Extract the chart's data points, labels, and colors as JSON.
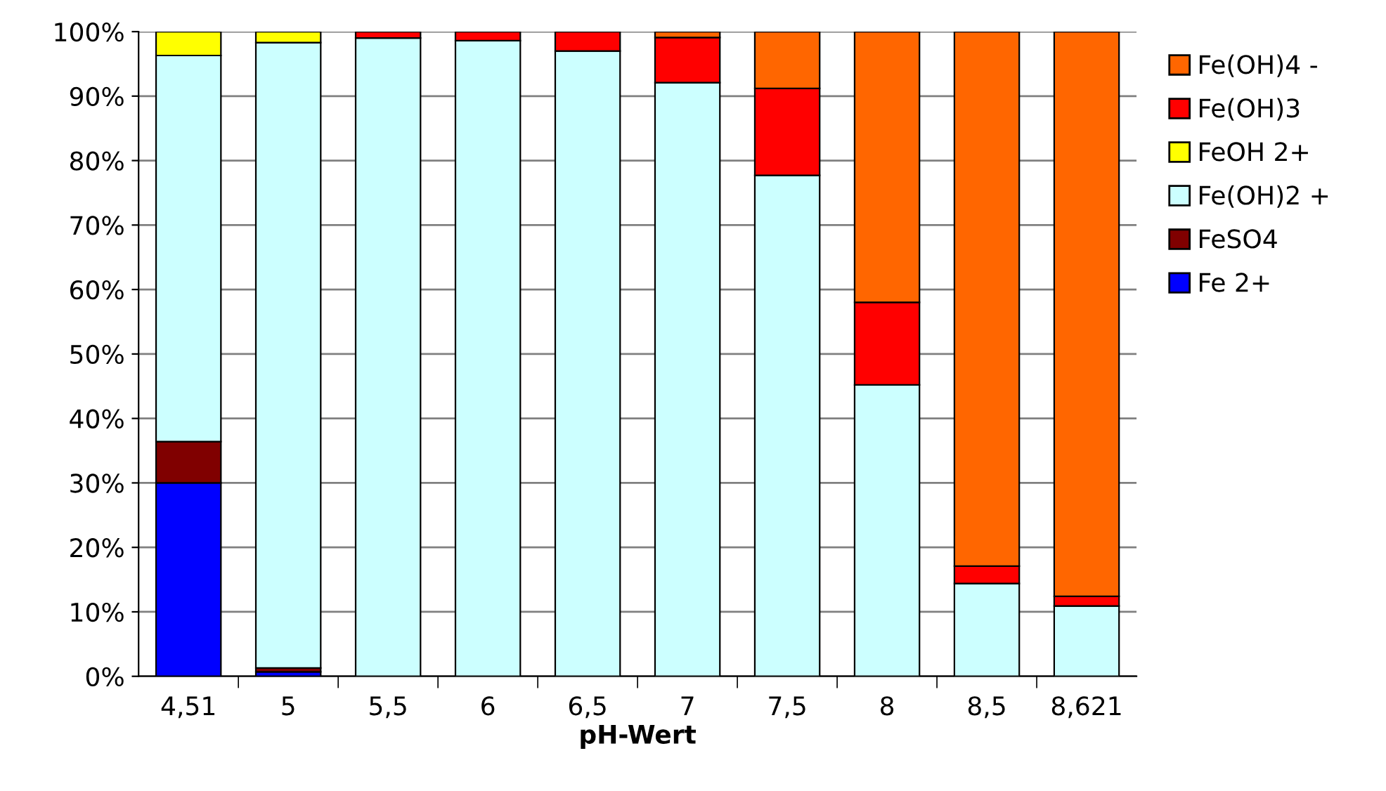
{
  "chart_data": {
    "type": "bar",
    "stacked": true,
    "xlabel": "pH-Wert",
    "categories": [
      "4,51",
      "5",
      "5,5",
      "6",
      "6,5",
      "7",
      "7,5",
      "8",
      "8,5",
      "8,621"
    ],
    "series": [
      {
        "name": "Fe 2+",
        "color": "#0000ff",
        "values": [
          30,
          0.7,
          null,
          null,
          null,
          null,
          null,
          null,
          null,
          null
        ]
      },
      {
        "name": "FeSO4",
        "color": "#800000",
        "values": [
          6.4,
          0.6,
          null,
          null,
          null,
          null,
          null,
          null,
          null,
          null
        ]
      },
      {
        "name": "Fe(OH)2 +",
        "color": "#ccffff",
        "values": [
          59.9,
          97,
          99,
          98.6,
          97,
          92.1,
          77.7,
          45.2,
          14.4,
          10.9
        ]
      },
      {
        "name": "FeOH 2+",
        "color": "#ffff00",
        "values": [
          3.7,
          1.7,
          null,
          null,
          null,
          null,
          null,
          null,
          null,
          null
        ]
      },
      {
        "name": "Fe(OH)3",
        "color": "#ff0000",
        "values": [
          null,
          null,
          1,
          1.4,
          3,
          7,
          13.5,
          12.8,
          2.7,
          1.5
        ]
      },
      {
        "name": "Fe(OH)4 -",
        "color": "#ff6600",
        "values": [
          null,
          null,
          null,
          null,
          null,
          0.9,
          8.8,
          42,
          82.9,
          87.6
        ]
      }
    ],
    "ylim": [
      0,
      100
    ],
    "yticks": [
      {
        "value": 0,
        "label": "0%"
      },
      {
        "value": 10,
        "label": "10%"
      },
      {
        "value": 20,
        "label": "20%"
      },
      {
        "value": 30,
        "label": "30%"
      },
      {
        "value": 40,
        "label": "40%"
      },
      {
        "value": 50,
        "label": "50%"
      },
      {
        "value": 60,
        "label": "60%"
      },
      {
        "value": 70,
        "label": "70%"
      },
      {
        "value": 80,
        "label": "80%"
      },
      {
        "value": 90,
        "label": "90%"
      },
      {
        "value": 100,
        "label": "100%"
      }
    ],
    "grid": "y",
    "legend": "right"
  }
}
